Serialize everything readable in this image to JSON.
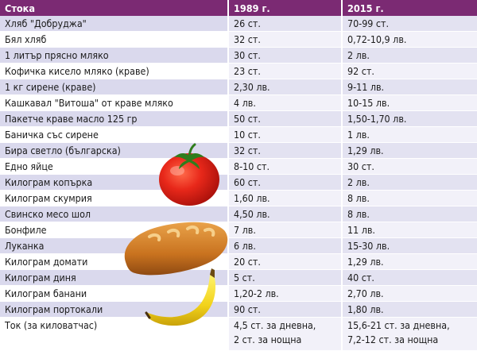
{
  "headers": {
    "item": "Стока",
    "y1989": "1989 г.",
    "y2015": "2015 г."
  },
  "rows": [
    {
      "item": "Хляб \"Добруджа\"",
      "p1989": "26 ст.",
      "p2015": "70-99 ст."
    },
    {
      "item": "Бял хляб",
      "p1989": "32 ст.",
      "p2015": "0,72-10,9 лв."
    },
    {
      "item": "1 литър прясно мляко",
      "p1989": "30 ст.",
      "p2015": "2 лв."
    },
    {
      "item": "Кофичка кисело мляко (краве)",
      "p1989": "23 ст.",
      "p2015": "92 ст."
    },
    {
      "item": "1 кг сирене (краве)",
      "p1989": "2,30 лв.",
      "p2015": "9-11 лв."
    },
    {
      "item": "Кашкавал \"Витоша\" от краве мляко",
      "p1989": "4 лв.",
      "p2015": "10-15 лв."
    },
    {
      "item": "Пакетче краве масло 125 гр",
      "p1989": "50 ст.",
      "p2015": "1,50-1,70 лв."
    },
    {
      "item": "Баничка със сирене",
      "p1989": "10 ст.",
      "p2015": "1 лв."
    },
    {
      "item": "Бира светло (българска)",
      "p1989": "32 ст.",
      "p2015": "1,29 лв."
    },
    {
      "item": "Едно яйце",
      "p1989": "8-10 ст.",
      "p2015": "30 ст."
    },
    {
      "item": "Килограм копърка",
      "p1989": "60 ст.",
      "p2015": "2 лв."
    },
    {
      "item": "Килограм скумрия",
      "p1989": "1,60 лв.",
      "p2015": "8 лв."
    },
    {
      "item": "Свинско месо шол",
      "p1989": "4,50 лв.",
      "p2015": "8 лв."
    },
    {
      "item": "Бонфиле",
      "p1989": "7 лв.",
      "p2015": "11 лв."
    },
    {
      "item": "Луканка",
      "p1989": "6 лв.",
      "p2015": "15-30 лв."
    },
    {
      "item": "Килограм домати",
      "p1989": "20 ст.",
      "p2015": "1,29 лв."
    },
    {
      "item": "Килограм диня",
      "p1989": "5 ст.",
      "p2015": "40 ст."
    },
    {
      "item": "Килограм банани",
      "p1989": "1,20-2 лв.",
      "p2015": "2,70 лв."
    },
    {
      "item": "Килограм портокали",
      "p1989": "90 ст.",
      "p2015": "1,80 лв."
    }
  ],
  "electricity": {
    "item": "Ток (за киловатчас)",
    "p1989_line1": "4,5 ст. за дневна,",
    "p1989_line2": "2 ст. за нощна",
    "p2015_line1": "15,6-21 ст. за дневна,",
    "p2015_line2": "7,2-12 ст. за нощна"
  },
  "colors": {
    "header": "#7b2a73",
    "row_shade": "#dad9ed"
  }
}
